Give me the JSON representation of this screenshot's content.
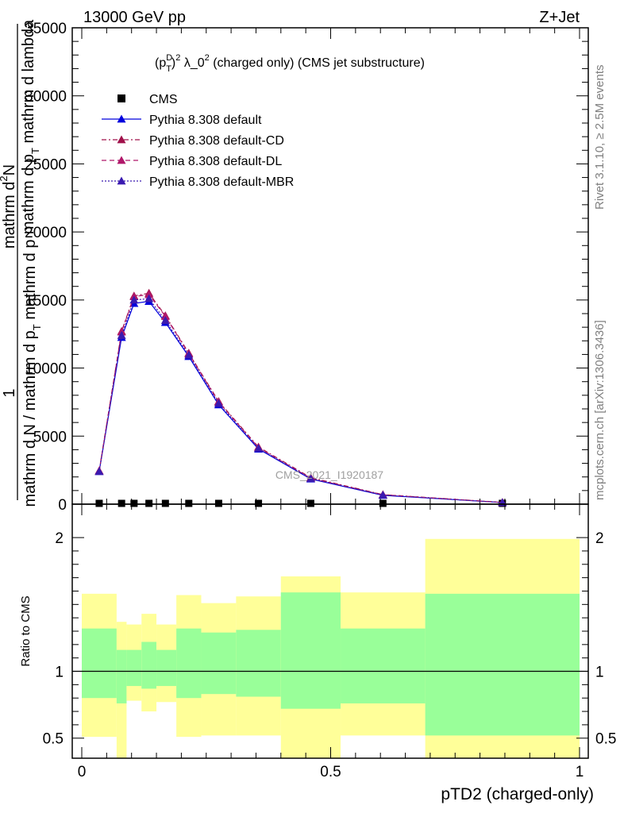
{
  "header": {
    "energy_label": "13000 GeV pp",
    "process_label": "Z+Jet"
  },
  "side_labels": {
    "rivet": "Rivet 3.1.10, ≥ 2.5M events",
    "mcplots": "mcplots.cern.ch [arXiv:1306.3436]"
  },
  "watermark": "CMS_2021_I1920187",
  "chart_data": [
    {
      "type": "line",
      "panel": "main",
      "title_parts": {
        "p": "(p",
        "sup_d": "D",
        "sub_t": "T",
        "close": ")",
        "sup_2": "2",
        "mid": " λ_0",
        "sup_2b": "2",
        "tail": " (charged only) (CMS jet substructure)"
      },
      "ylabel_parts": {
        "one": "1",
        "num_top": "mathrm d",
        "num_sup": "2",
        "num_rest": "N",
        "num_line2": "mathrm d p",
        "num_sub": "T",
        "num_line2b": " mathrm d lambda",
        "denom": "mathrm d N / mathrm d p",
        "denom_sub": "T",
        "denom_tail": " mathrm d p"
      },
      "xlim": [
        0,
        1
      ],
      "ylim": [
        0,
        35000
      ],
      "yticks": [
        0,
        5000,
        10000,
        15000,
        20000,
        25000,
        30000,
        35000
      ],
      "ytick_labels": [
        "0",
        "5000",
        "10000",
        "15000",
        "20000",
        "25000",
        "30000",
        "35000"
      ],
      "legend_position": "top-left",
      "x": [
        0.035,
        0.08,
        0.105,
        0.135,
        0.168,
        0.215,
        0.275,
        0.355,
        0.46,
        0.605,
        0.845
      ],
      "series": [
        {
          "name": "CMS",
          "color": "#000000",
          "marker": "square",
          "values": [
            0,
            0,
            0,
            0,
            0,
            0,
            0,
            0,
            0,
            0,
            0
          ]
        },
        {
          "name": "Pythia 8.308 default",
          "color": "#0000dd",
          "style": "solid",
          "marker": "triangle",
          "values": [
            2400,
            12250,
            14750,
            14900,
            13350,
            10850,
            7300,
            4050,
            1850,
            650,
            120
          ]
        },
        {
          "name": "Pythia 8.308 default-CD",
          "color": "#a0104a",
          "style": "dashdot",
          "marker": "triangle",
          "values": [
            2450,
            12700,
            15300,
            15500,
            13850,
            11100,
            7550,
            4200,
            1950,
            700,
            130
          ]
        },
        {
          "name": "Pythia 8.308 default-DL",
          "color": "#b0186a",
          "style": "dashed",
          "marker": "triangle",
          "values": [
            2450,
            12650,
            15250,
            15400,
            13800,
            11050,
            7500,
            4150,
            1900,
            690,
            125
          ]
        },
        {
          "name": "Pythia 8.308 default-MBR",
          "color": "#3a1ab0",
          "style": "dotted",
          "marker": "triangle",
          "values": [
            2400,
            12400,
            15000,
            15100,
            13500,
            10950,
            7400,
            4100,
            1880,
            670,
            120
          ]
        }
      ]
    },
    {
      "type": "area",
      "panel": "ratio",
      "ylabel": "Ratio to CMS",
      "xlabel": "pTD2 (charged-only)",
      "xlim": [
        0,
        1
      ],
      "ylim": [
        0.35,
        2.25
      ],
      "xticks": [
        0,
        0.5,
        1
      ],
      "xtick_labels": [
        "0",
        "0.5",
        "1"
      ],
      "yticks": [
        0.5,
        1,
        2
      ],
      "ytick_labels": [
        "0.5",
        "1",
        "2"
      ],
      "reference_line": 1,
      "bins": [
        {
          "x0": 0.0,
          "x1": 0.07,
          "inner": [
            0.8,
            1.32
          ],
          "outer": [
            0.51,
            1.58
          ]
        },
        {
          "x0": 0.07,
          "x1": 0.09,
          "inner": [
            0.76,
            1.16
          ],
          "outer": [
            0.35,
            1.37
          ]
        },
        {
          "x0": 0.09,
          "x1": 0.12,
          "inner": [
            0.89,
            1.16
          ],
          "outer": [
            0.78,
            1.35
          ]
        },
        {
          "x0": 0.12,
          "x1": 0.15,
          "inner": [
            0.87,
            1.22
          ],
          "outer": [
            0.7,
            1.43
          ]
        },
        {
          "x0": 0.15,
          "x1": 0.19,
          "inner": [
            0.89,
            1.16
          ],
          "outer": [
            0.77,
            1.35
          ]
        },
        {
          "x0": 0.19,
          "x1": 0.24,
          "inner": [
            0.8,
            1.32
          ],
          "outer": [
            0.51,
            1.57
          ]
        },
        {
          "x0": 0.24,
          "x1": 0.31,
          "inner": [
            0.83,
            1.29
          ],
          "outer": [
            0.52,
            1.51
          ]
        },
        {
          "x0": 0.31,
          "x1": 0.4,
          "inner": [
            0.81,
            1.31
          ],
          "outer": [
            0.52,
            1.56
          ]
        },
        {
          "x0": 0.4,
          "x1": 0.52,
          "inner": [
            0.72,
            1.59
          ],
          "outer": [
            0.35,
            1.71
          ]
        },
        {
          "x0": 0.52,
          "x1": 0.69,
          "inner": [
            0.76,
            1.32
          ],
          "outer": [
            0.52,
            1.59
          ]
        },
        {
          "x0": 0.69,
          "x1": 1.0,
          "inner": [
            0.52,
            1.58
          ],
          "outer": [
            0.35,
            1.99
          ]
        }
      ],
      "colors": {
        "inner": "#99ff99",
        "outer": "#ffff99"
      }
    }
  ]
}
